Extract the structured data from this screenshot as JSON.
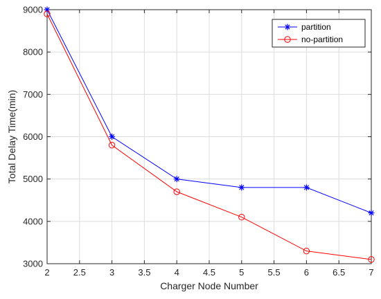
{
  "chart_data": {
    "type": "line",
    "title": "",
    "xlabel": "Charger Node Number",
    "ylabel": "Total Delay Time(min)",
    "xlim": [
      2,
      7
    ],
    "ylim": [
      3000,
      9000
    ],
    "xticks": [
      "2",
      "2.5",
      "3",
      "3.5",
      "4",
      "4.5",
      "5",
      "5.5",
      "6",
      "6.5",
      "7"
    ],
    "yticks": [
      "3000",
      "4000",
      "5000",
      "6000",
      "7000",
      "8000",
      "9000"
    ],
    "grid": true,
    "legend_position": "top-right",
    "series": [
      {
        "name": "partition",
        "color": "#0000ff",
        "marker": "asterisk",
        "x": [
          2,
          3,
          4,
          5,
          6,
          7
        ],
        "y": [
          9000,
          6000,
          5000,
          4800,
          4800,
          4200
        ]
      },
      {
        "name": "no-partition",
        "color": "#ff0000",
        "marker": "circle",
        "x": [
          2,
          3,
          4,
          5,
          6,
          7
        ],
        "y": [
          8900,
          5800,
          4700,
          4100,
          3300,
          3100
        ]
      }
    ]
  }
}
